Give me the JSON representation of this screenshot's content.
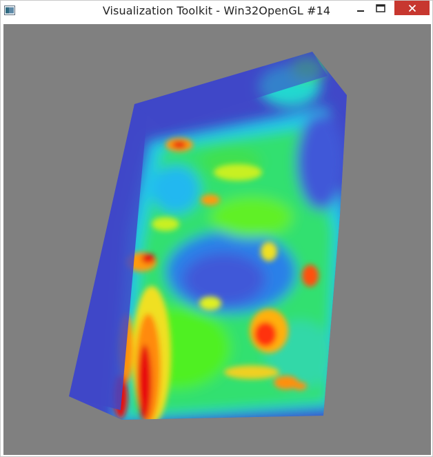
{
  "window": {
    "title": "Visualization Toolkit - Win32OpenGL #14",
    "background_color": "#808080",
    "controls": {
      "minimize_icon": "minimize-icon",
      "maximize_icon": "maximize-icon",
      "close_icon": "close-icon",
      "close_color": "#c7372f"
    }
  },
  "render": {
    "description": "",
    "colormap": [
      "#4040c8",
      "#2090f0",
      "#20e0e0",
      "#20e060",
      "#40f020",
      "#e0f020",
      "#ffa000",
      "#ff3000",
      "#e00000"
    ]
  }
}
